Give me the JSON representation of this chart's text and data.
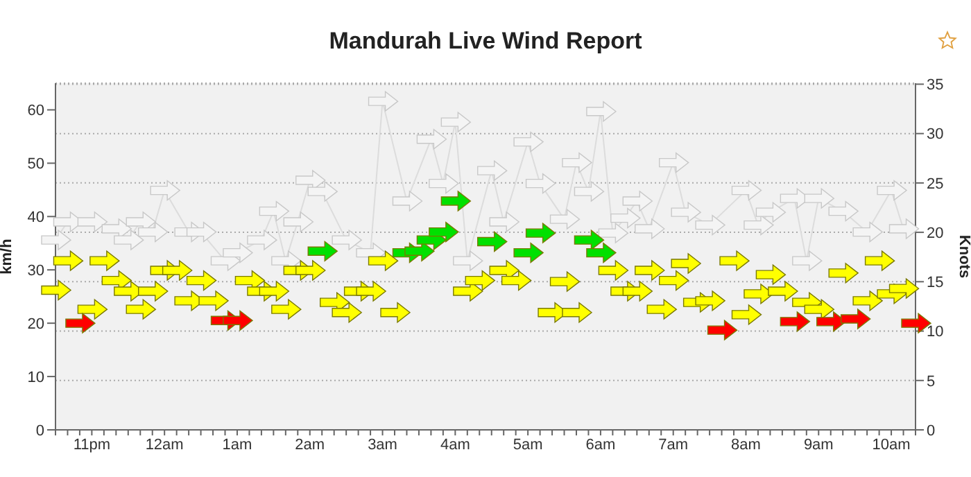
{
  "chart_data": {
    "type": "scatter",
    "title": "Mandurah Live Wind Report",
    "ylabel": "km/h",
    "y2label": "Knots",
    "categories": [
      null,
      null,
      null,
      "11pm",
      null,
      null,
      null,
      null,
      null,
      "12am",
      null,
      null,
      null,
      null,
      null,
      "1am",
      null,
      null,
      null,
      null,
      null,
      "2am",
      null,
      null,
      null,
      null,
      null,
      "3am",
      null,
      null,
      null,
      null,
      null,
      "4am",
      null,
      null,
      null,
      null,
      null,
      "5am",
      null,
      null,
      null,
      null,
      null,
      "6am",
      null,
      null,
      null,
      null,
      null,
      "7am",
      null,
      null,
      null,
      null,
      null,
      "8am",
      null,
      null,
      null,
      null,
      null,
      "9am",
      null,
      null,
      null,
      null,
      null,
      "10am",
      null,
      null
    ],
    "ylim": [
      0,
      65
    ],
    "yticks": [
      0,
      10,
      20,
      30,
      40,
      50,
      60
    ],
    "y2lim": [
      0,
      35.1
    ],
    "y2ticks": [
      0,
      5,
      10,
      15,
      20,
      25,
      30,
      35
    ],
    "grid": "y",
    "series": [
      {
        "type": "line",
        "color": "#dcdcdc",
        "marker": "triangle",
        "values": [
          35.6,
          39,
          null,
          39,
          null,
          37.7,
          35.6,
          39,
          37.1,
          44.9,
          null,
          37.1,
          37.1,
          null,
          31.7,
          33.2,
          null,
          35.6,
          41,
          31.7,
          39,
          46.8,
          44.7,
          null,
          35.6,
          null,
          33.2,
          61.6,
          null,
          42.9,
          null,
          54.5,
          46.2,
          57.7,
          31.7,
          null,
          48.6,
          39,
          null,
          54,
          46.2,
          null,
          39.5,
          50.1,
          44.7,
          59.7,
          36.9,
          39.7,
          42.9,
          37.7,
          null,
          50.1,
          40.8,
          null,
          38.4,
          null,
          null,
          44.9,
          38.4,
          40.8,
          null,
          43.4,
          31.7,
          43.4,
          null,
          41,
          null,
          37.1,
          null,
          44.9,
          37.7,
          null
        ]
      },
      {
        "color": "#ffff00",
        "values": [
          26.2,
          31.7,
          null,
          22.6,
          31.7,
          28,
          26,
          22.6,
          26,
          29.9,
          29.9,
          24.2,
          28,
          24.2,
          null,
          null,
          28,
          26,
          26,
          22.6,
          29.9,
          29.9,
          null,
          23.9,
          22,
          26,
          26,
          31.7,
          22,
          null,
          null,
          null,
          null,
          null,
          26,
          28,
          null,
          29.9,
          28,
          null,
          null,
          22,
          27.8,
          22,
          null,
          null,
          29.9,
          26,
          26,
          29.9,
          22.6,
          28,
          31.2,
          23.9,
          24.2,
          null,
          31.7,
          21.6,
          25.5,
          29.1,
          26,
          null,
          23.9,
          22.6,
          null,
          29.4,
          null,
          24.2,
          31.7,
          25.5,
          26.5,
          null
        ]
      },
      {
        "color": "#ff0000",
        "values": [
          null,
          null,
          20,
          null,
          null,
          null,
          null,
          null,
          null,
          null,
          null,
          null,
          null,
          null,
          20.5,
          20.5,
          null,
          null,
          null,
          null,
          null,
          null,
          null,
          null,
          null,
          null,
          null,
          null,
          null,
          null,
          null,
          null,
          null,
          null,
          null,
          null,
          null,
          null,
          null,
          null,
          null,
          null,
          null,
          null,
          null,
          null,
          null,
          null,
          null,
          null,
          null,
          null,
          null,
          null,
          null,
          18.7,
          null,
          null,
          null,
          null,
          null,
          20.3,
          null,
          null,
          20.3,
          null,
          20.8,
          null,
          null,
          null,
          null,
          20
        ]
      },
      {
        "color": "#00e000",
        "values": [
          null,
          null,
          null,
          null,
          null,
          null,
          null,
          null,
          null,
          null,
          null,
          null,
          null,
          null,
          null,
          null,
          null,
          null,
          null,
          null,
          null,
          null,
          33.5,
          null,
          null,
          null,
          null,
          null,
          null,
          33.2,
          33.5,
          35.6,
          37.1,
          42.9,
          null,
          null,
          35.3,
          null,
          null,
          33.2,
          36.9,
          null,
          null,
          null,
          35.6,
          33.2,
          null,
          null,
          null,
          null,
          null,
          null,
          null,
          null,
          null,
          null,
          null,
          null,
          null,
          null,
          null,
          null,
          null,
          null,
          null,
          null,
          null,
          null,
          null,
          null,
          null,
          null
        ]
      }
    ]
  }
}
